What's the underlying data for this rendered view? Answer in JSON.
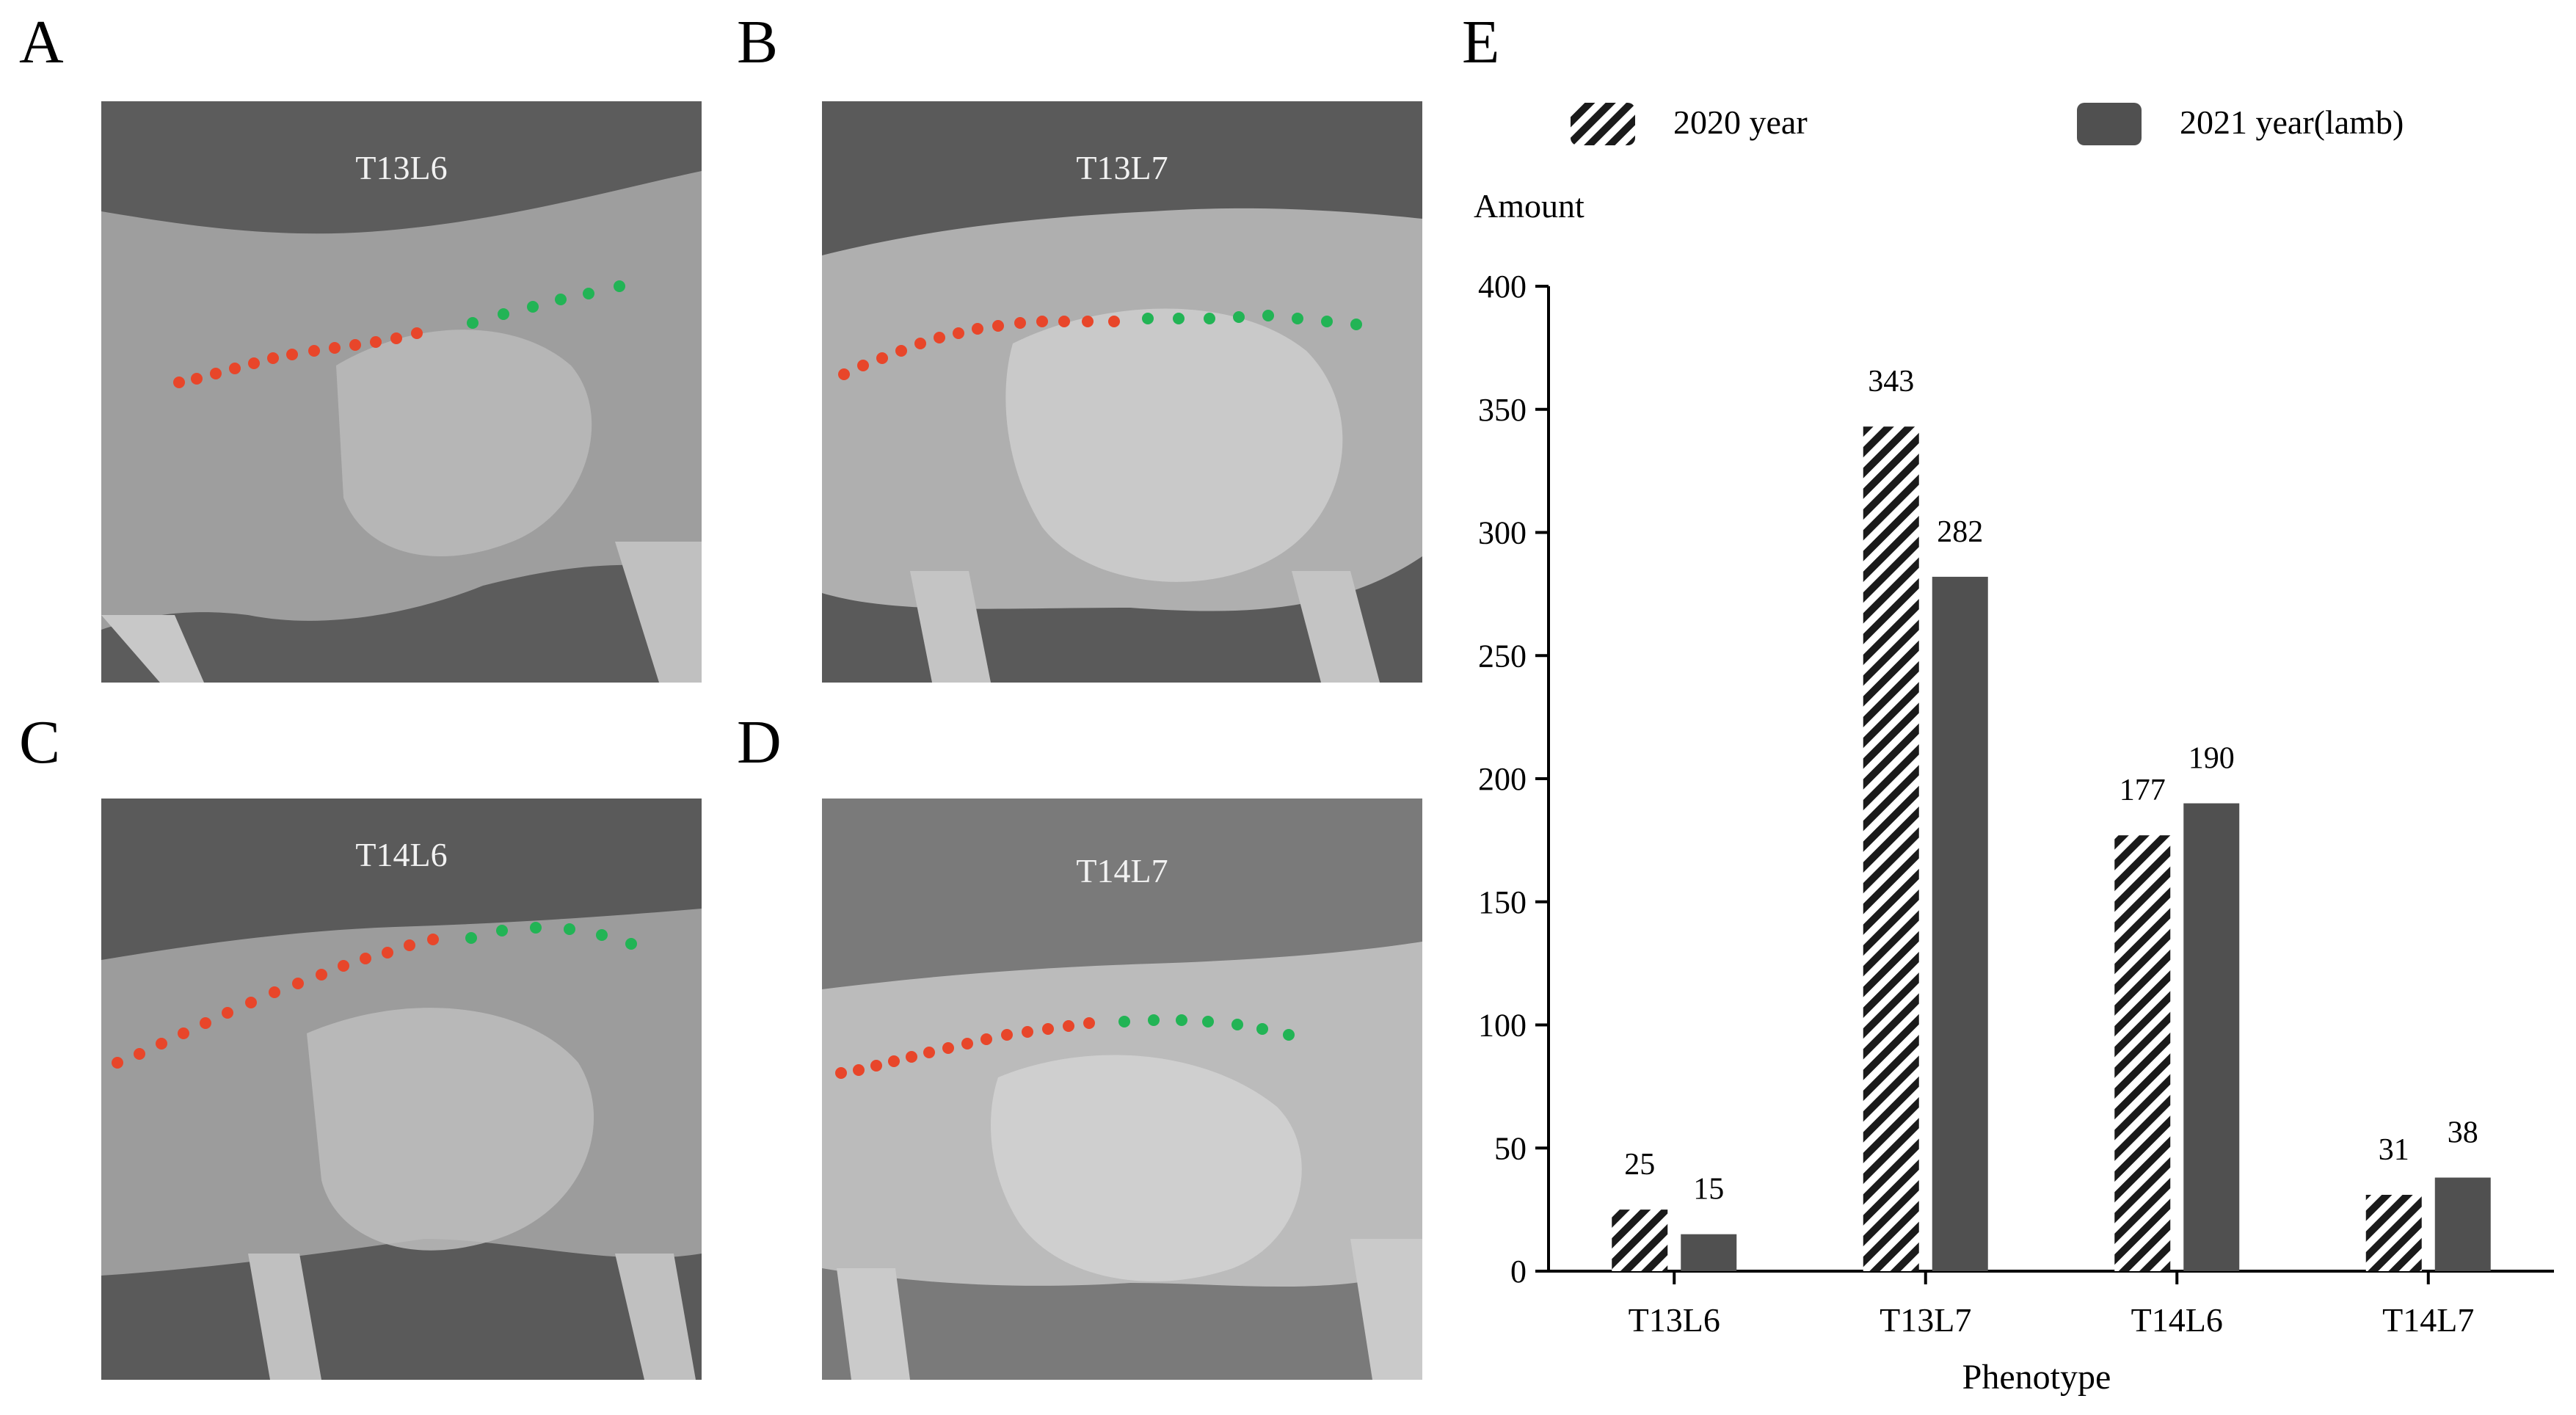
{
  "panels": [
    {
      "letter": "A",
      "label": "T13L6"
    },
    {
      "letter": "B",
      "label": "T13L7"
    },
    {
      "letter": "C",
      "label": "T14L6"
    },
    {
      "letter": "D",
      "label": "T14L7"
    }
  ],
  "chart_panel_letter": "E",
  "colors": {
    "bar_2021": "#505050",
    "hatch_dark": "#1a1a1a",
    "thoracic_dot": "#e8462a",
    "lumbar_dot": "#22b455"
  },
  "chart_data": {
    "type": "bar",
    "title": "",
    "xlabel": "Phenotype",
    "ylabel": "Amount",
    "categories": [
      "T13L6",
      "T13L7",
      "T14L6",
      "T14L7"
    ],
    "series": [
      {
        "name": "2020 year",
        "style": "hatched",
        "values": [
          25,
          343,
          177,
          31
        ]
      },
      {
        "name": "2021 year(lamb)",
        "style": "solid",
        "values": [
          15,
          282,
          190,
          38
        ]
      }
    ],
    "ylim": [
      0,
      400
    ],
    "yticks": [
      0,
      50,
      100,
      150,
      200,
      250,
      300,
      350,
      400
    ],
    "legend": "top"
  }
}
